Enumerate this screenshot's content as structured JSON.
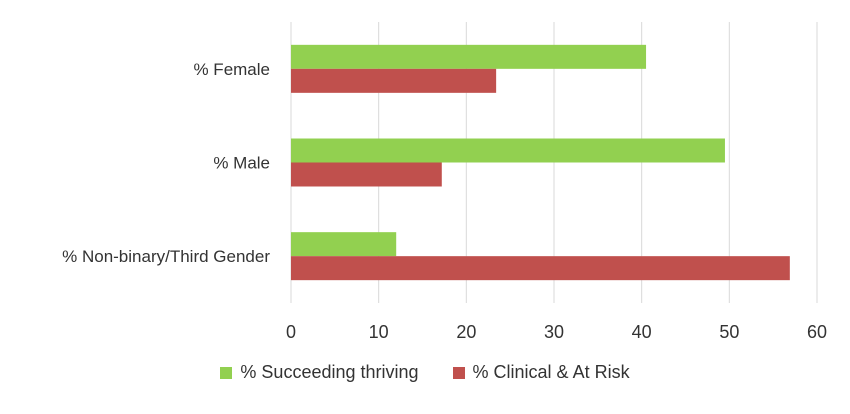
{
  "chart_data": {
    "type": "bar",
    "orientation": "horizontal",
    "categories": [
      "% Female",
      "% Male",
      "% Non-binary/Third Gender"
    ],
    "series": [
      {
        "name": "% Succeeding thriving",
        "values": [
          40.5,
          49.5,
          12
        ],
        "color": "#92d050"
      },
      {
        "name": "% Clinical & At Risk",
        "values": [
          23.4,
          17.2,
          56.9
        ],
        "color": "#c0504d"
      }
    ],
    "xlim": [
      0,
      60
    ],
    "xticks": [
      "0",
      "10",
      "20",
      "30",
      "40",
      "50",
      "60"
    ],
    "grid": true,
    "legend_position": "bottom"
  }
}
